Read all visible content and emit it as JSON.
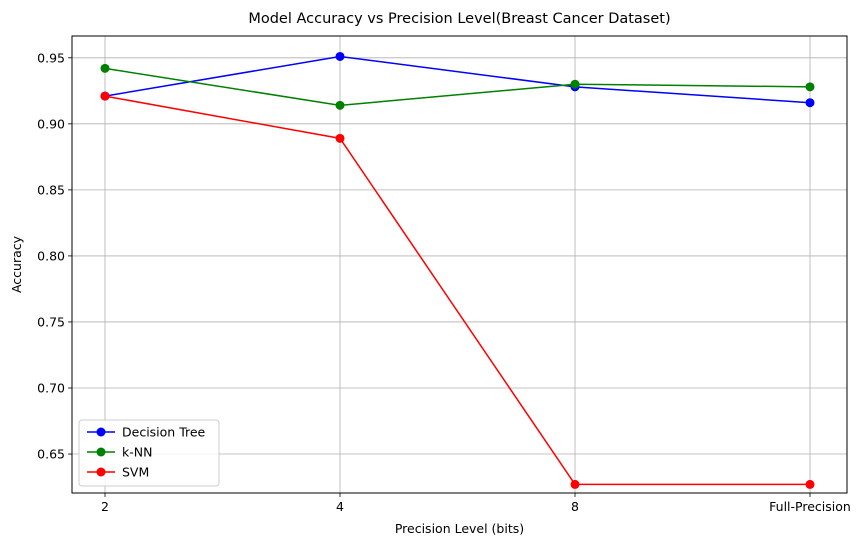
{
  "chart_data": {
    "type": "line",
    "title": "Model Accuracy vs Precision Level(Breast Cancer Dataset)",
    "xlabel": "Precision Level (bits)",
    "ylabel": "Accuracy",
    "categories": [
      "2",
      "4",
      "8",
      "Full-Precision"
    ],
    "ylim": [
      0.6205,
      0.9665
    ],
    "yticks": [
      "0.65",
      "0.70",
      "0.75",
      "0.80",
      "0.85",
      "0.90",
      "0.95"
    ],
    "grid": true,
    "legend_position": "lower-left",
    "series": [
      {
        "name": "Decision Tree",
        "color": "#0000ff",
        "values": [
          0.921,
          0.951,
          0.928,
          0.916
        ]
      },
      {
        "name": "k-NN",
        "color": "#008000",
        "values": [
          0.942,
          0.914,
          0.93,
          0.928
        ]
      },
      {
        "name": "SVM",
        "color": "#ff0000",
        "values": [
          0.921,
          0.889,
          0.627,
          0.627
        ]
      }
    ]
  }
}
